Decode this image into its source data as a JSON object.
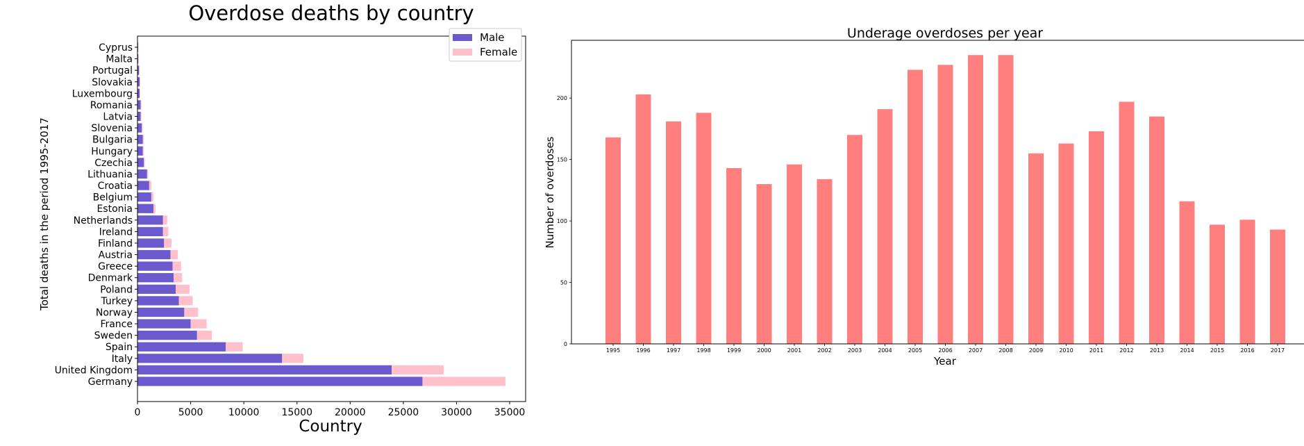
{
  "chart_data": [
    {
      "type": "bar",
      "orientation": "horizontal",
      "stacked": true,
      "title": "Overdose deaths by country",
      "xlabel": "Country",
      "ylabel": "Total deaths in the period 1995-2017",
      "xlim": [
        0,
        36500
      ],
      "xticks": [
        "0",
        "5000",
        "10000",
        "15000",
        "20000",
        "25000",
        "30000",
        "35000"
      ],
      "legend_position": "top-right",
      "categories": [
        "Germany",
        "United Kingdom",
        "Italy",
        "Spain",
        "Sweden",
        "France",
        "Norway",
        "Turkey",
        "Poland",
        "Denmark",
        "Greece",
        "Austria",
        "Finland",
        "Ireland",
        "Netherlands",
        "Estonia",
        "Belgium",
        "Croatia",
        "Lithuania",
        "Czechia",
        "Hungary",
        "Bulgaria",
        "Slovenia",
        "Latvia",
        "Romania",
        "Luxembourg",
        "Slovakia",
        "Portugal",
        "Malta",
        "Cyprus"
      ],
      "series": [
        {
          "name": "Male",
          "color": "#6a5acd",
          "values": [
            26800,
            23900,
            13600,
            8300,
            5600,
            5000,
            4400,
            3900,
            3600,
            3400,
            3300,
            3100,
            2500,
            2400,
            2400,
            1500,
            1300,
            1100,
            900,
            600,
            500,
            500,
            400,
            300,
            300,
            200,
            200,
            150,
            80,
            60
          ]
        },
        {
          "name": "Female",
          "color": "#ffc0cb",
          "values": [
            7800,
            4900,
            2000,
            1600,
            1400,
            1500,
            1300,
            1300,
            1300,
            800,
            800,
            700,
            700,
            500,
            400,
            200,
            200,
            200,
            100,
            100,
            100,
            100,
            100,
            60,
            60,
            40,
            50,
            40,
            20,
            20
          ]
        }
      ]
    },
    {
      "type": "bar",
      "title": "Underage overdoses per year",
      "xlabel": "Year",
      "ylabel": "Number of overdoses",
      "ylim": [
        0,
        247
      ],
      "yticks": [
        0,
        50,
        100,
        150,
        200
      ],
      "yticklabels": [
        "0",
        "50",
        "100",
        "150",
        "200"
      ],
      "color": "#ff7f7f",
      "categories": [
        "1995",
        "1996",
        "1997",
        "1998",
        "1999",
        "2000",
        "2001",
        "2002",
        "2003",
        "2004",
        "2005",
        "2006",
        "2007",
        "2008",
        "2009",
        "2010",
        "2011",
        "2012",
        "2013",
        "2014",
        "2015",
        "2016",
        "2017"
      ],
      "values": [
        168,
        203,
        181,
        188,
        143,
        130,
        146,
        134,
        170,
        191,
        223,
        227,
        235,
        235,
        155,
        163,
        173,
        197,
        185,
        116,
        97,
        101,
        93
      ]
    }
  ]
}
